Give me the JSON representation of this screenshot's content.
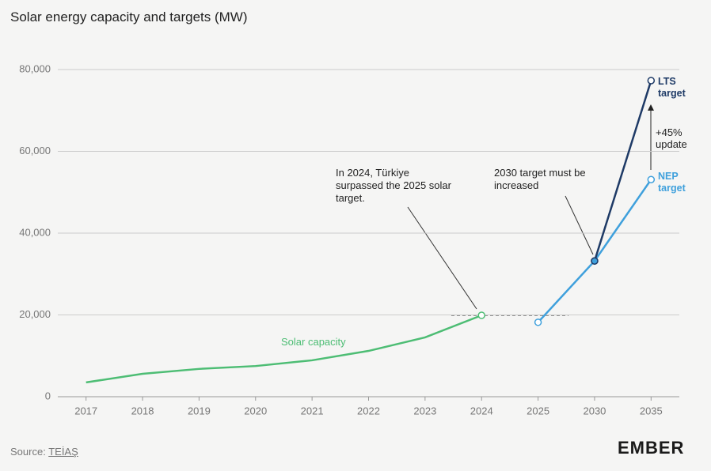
{
  "chart_data": {
    "type": "line",
    "subtitle": "Solar energy capacity and targets (MW)",
    "categories": [
      "2017",
      "2018",
      "2019",
      "2020",
      "2021",
      "2022",
      "2023",
      "2024",
      "2025",
      "2030",
      "2035"
    ],
    "series": [
      {
        "name": "Solar capacity",
        "color": "#4dbd74",
        "values": [
          3500,
          5600,
          6800,
          7500,
          8900,
          11200,
          14500,
          19900,
          null,
          null,
          null
        ]
      },
      {
        "name": "NEP target",
        "color": "#3fa0dc",
        "values": [
          null,
          null,
          null,
          null,
          null,
          null,
          null,
          null,
          18200,
          33200,
          53100
        ]
      },
      {
        "name": "LTS target",
        "color": "#1e3a66",
        "values": [
          null,
          null,
          null,
          null,
          null,
          null,
          null,
          null,
          null,
          33200,
          77300
        ]
      }
    ],
    "ylim": [
      0,
      80000
    ],
    "yticks": [
      0,
      {
        "value": 20000,
        "label": "20,000"
      },
      {
        "value": 40000,
        "label": "40,000"
      },
      {
        "value": 60000,
        "label": "60,000"
      },
      {
        "value": 80000,
        "label": "80,000"
      }
    ],
    "grid": true,
    "annotations": [
      "In 2024, Türkiye surpassed the 2025 solar target.",
      "2030 target must be increased",
      "+45% update"
    ],
    "source_label": "Source:",
    "source": "TEİAŞ",
    "logo": "EMBER"
  }
}
